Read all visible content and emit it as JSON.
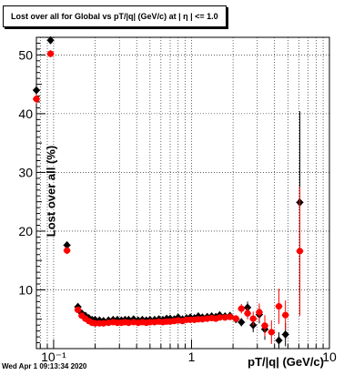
{
  "chart_data": {
    "type": "scatter",
    "title": "Lost over all for Global vs pT/|q| (GeV/c) at |  η | <= 1.0",
    "xlabel": "pT/|q| (GeV/c)",
    "ylabel": "Lost over all (%)",
    "xscale": "log",
    "xlim": [
      0.075,
      10
    ],
    "ylim": [
      0,
      53
    ],
    "grid": true,
    "x_ticks": [
      0.1,
      1,
      10
    ],
    "x_tick_labels": [
      "10⁻¹",
      "1",
      "10"
    ],
    "y_ticks": [
      10,
      20,
      30,
      40,
      50
    ],
    "y_tick_labels": [
      "10",
      "20",
      "30",
      "40",
      "50"
    ],
    "colors": {
      "series1": "#000000",
      "series2": "#ff0000"
    },
    "series": [
      {
        "color": "#000000",
        "marker": "diamond",
        "x": [
          0.075,
          0.095,
          0.125,
          0.15,
          0.16,
          0.17,
          0.18,
          0.19,
          0.2,
          0.215,
          0.23,
          0.25,
          0.27,
          0.29,
          0.31,
          0.33,
          0.35,
          0.38,
          0.41,
          0.44,
          0.47,
          0.5,
          0.54,
          0.58,
          0.62,
          0.66,
          0.7,
          0.75,
          0.8,
          0.86,
          0.92,
          0.98,
          1.05,
          1.12,
          1.2,
          1.3,
          1.4,
          1.5,
          1.6,
          1.75,
          1.9,
          2.1,
          2.3,
          2.55,
          2.8,
          3.1,
          3.4,
          4.3,
          4.8,
          6.1
        ],
        "y": [
          44,
          52.5,
          17.6,
          7.1,
          6.0,
          5.6,
          5.2,
          4.9,
          4.9,
          4.8,
          4.7,
          4.8,
          4.9,
          4.9,
          4.8,
          4.9,
          4.9,
          5.0,
          4.8,
          4.9,
          4.8,
          4.9,
          4.9,
          5.0,
          4.9,
          5.1,
          5.1,
          5.0,
          5.3,
          5.0,
          5.2,
          5.3,
          5.2,
          5.5,
          5.3,
          5.4,
          5.5,
          5.4,
          5.7,
          5.5,
          5.6,
          5.0,
          4.5,
          7.0,
          4.0,
          5.8,
          3.3,
          1.4,
          2.4,
          24.9
        ],
        "y_err": [
          0.8,
          0.6,
          0.6,
          0.3,
          0.2,
          0.2,
          0.2,
          0.2,
          0.2,
          0.2,
          0.2,
          0.2,
          0.2,
          0.2,
          0.2,
          0.2,
          0.2,
          0.2,
          0.2,
          0.2,
          0.2,
          0.2,
          0.2,
          0.2,
          0.2,
          0.2,
          0.2,
          0.2,
          0.2,
          0.2,
          0.3,
          0.3,
          0.3,
          0.3,
          0.3,
          0.3,
          0.3,
          0.4,
          0.4,
          0.4,
          0.5,
          0.6,
          0.7,
          1.0,
          1.2,
          1.5,
          1.8,
          1.4,
          2.0,
          15.5
        ]
      },
      {
        "color": "#ff0000",
        "marker": "circle",
        "x": [
          0.075,
          0.095,
          0.125,
          0.15,
          0.16,
          0.17,
          0.18,
          0.19,
          0.2,
          0.215,
          0.23,
          0.25,
          0.27,
          0.29,
          0.31,
          0.33,
          0.35,
          0.38,
          0.41,
          0.44,
          0.47,
          0.5,
          0.54,
          0.58,
          0.62,
          0.66,
          0.7,
          0.75,
          0.8,
          0.86,
          0.92,
          0.98,
          1.05,
          1.12,
          1.2,
          1.3,
          1.4,
          1.5,
          1.6,
          1.75,
          1.9,
          2.1,
          2.3,
          2.55,
          2.8,
          3.1,
          3.4,
          3.8,
          4.3,
          4.8,
          6.1
        ],
        "y": [
          42.5,
          50.2,
          16.7,
          6.6,
          5.6,
          5.1,
          4.7,
          4.4,
          4.3,
          4.3,
          4.3,
          4.4,
          4.5,
          4.4,
          4.4,
          4.5,
          4.4,
          4.5,
          4.4,
          4.5,
          4.4,
          4.5,
          4.5,
          4.6,
          4.5,
          4.6,
          4.6,
          4.7,
          4.8,
          4.7,
          4.9,
          4.9,
          4.9,
          5.0,
          5.0,
          5.1,
          5.2,
          5.1,
          5.3,
          5.3,
          5.4,
          5.1,
          6.8,
          6.0,
          5.1,
          6.2,
          3.9,
          2.8,
          7.2,
          5.7,
          16.6
        ],
        "y_err": [
          0.8,
          0.6,
          0.6,
          0.3,
          0.2,
          0.2,
          0.2,
          0.2,
          0.2,
          0.2,
          0.2,
          0.2,
          0.2,
          0.2,
          0.2,
          0.2,
          0.2,
          0.2,
          0.2,
          0.2,
          0.2,
          0.2,
          0.2,
          0.2,
          0.2,
          0.2,
          0.2,
          0.2,
          0.2,
          0.2,
          0.3,
          0.3,
          0.3,
          0.3,
          0.3,
          0.3,
          0.3,
          0.4,
          0.4,
          0.4,
          0.5,
          0.6,
          0.8,
          1.0,
          1.2,
          1.5,
          1.8,
          2.0,
          3.0,
          2.5,
          11.0
        ]
      }
    ]
  },
  "datestamp": "Wed Apr  1 09:13:34 2020"
}
